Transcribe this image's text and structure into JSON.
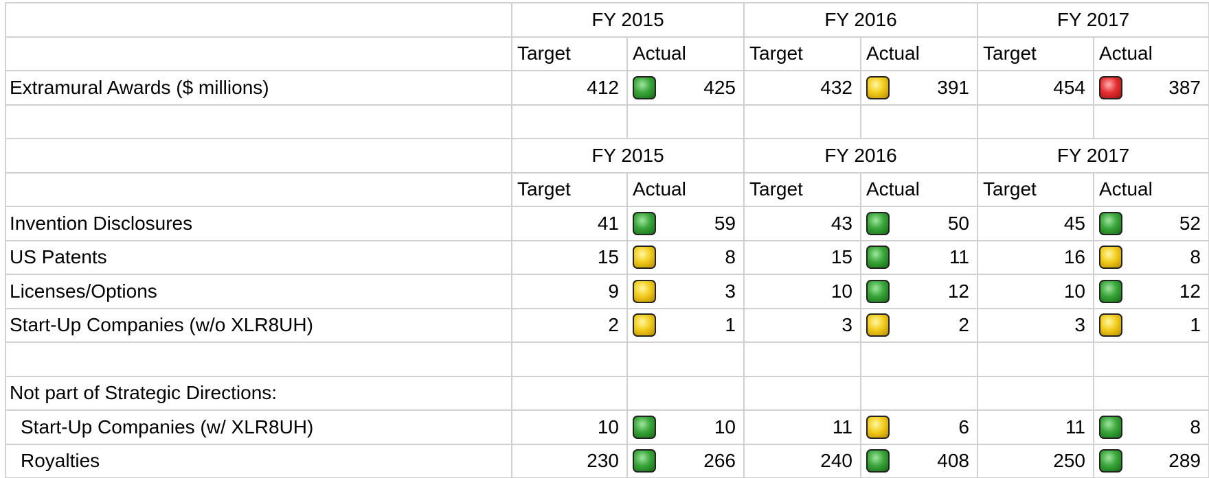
{
  "sections": [
    {
      "years": [
        "FY 2015",
        "FY 2016",
        "FY 2017"
      ],
      "subheaders": [
        "Target",
        "Actual"
      ],
      "rows": [
        {
          "label": "Extramural Awards ($ millions)",
          "cells": [
            {
              "target": 412,
              "status": "green",
              "actual": 425
            },
            {
              "target": 432,
              "status": "yellow",
              "actual": 391
            },
            {
              "target": 454,
              "status": "red",
              "actual": 387
            }
          ]
        }
      ]
    },
    {
      "years": [
        "FY 2015",
        "FY 2016",
        "FY 2017"
      ],
      "subheaders": [
        "Target",
        "Actual"
      ],
      "rows": [
        {
          "label": "Invention Disclosures",
          "cells": [
            {
              "target": 41,
              "status": "green",
              "actual": 59
            },
            {
              "target": 43,
              "status": "green",
              "actual": 50
            },
            {
              "target": 45,
              "status": "green",
              "actual": 52
            }
          ]
        },
        {
          "label": "US Patents",
          "cells": [
            {
              "target": 15,
              "status": "yellow",
              "actual": 8
            },
            {
              "target": 15,
              "status": "green",
              "actual": 11
            },
            {
              "target": 16,
              "status": "yellow",
              "actual": 8
            }
          ]
        },
        {
          "label": "Licenses/Options",
          "cells": [
            {
              "target": 9,
              "status": "yellow",
              "actual": 3
            },
            {
              "target": 10,
              "status": "green",
              "actual": 12
            },
            {
              "target": 10,
              "status": "green",
              "actual": 12
            }
          ]
        },
        {
          "label": "Start-Up Companies (w/o XLR8UH)",
          "cells": [
            {
              "target": 2,
              "status": "yellow",
              "actual": 1
            },
            {
              "target": 3,
              "status": "yellow",
              "actual": 2
            },
            {
              "target": 3,
              "status": "yellow",
              "actual": 1
            }
          ]
        }
      ]
    }
  ],
  "note": {
    "label": "Not part of Strategic Directions:",
    "rows": [
      {
        "label": "Start-Up Companies (w/ XLR8UH)",
        "cells": [
          {
            "target": 10,
            "status": "green",
            "actual": 10
          },
          {
            "target": 11,
            "status": "yellow",
            "actual": 6
          },
          {
            "target": 11,
            "status": "green",
            "actual": 8
          }
        ]
      },
      {
        "label": "Royalties",
        "cells": [
          {
            "target": 230,
            "status": "green",
            "actual": 266
          },
          {
            "target": 240,
            "status": "green",
            "actual": 408
          },
          {
            "target": 250,
            "status": "green",
            "actual": 289
          }
        ]
      }
    ]
  }
}
